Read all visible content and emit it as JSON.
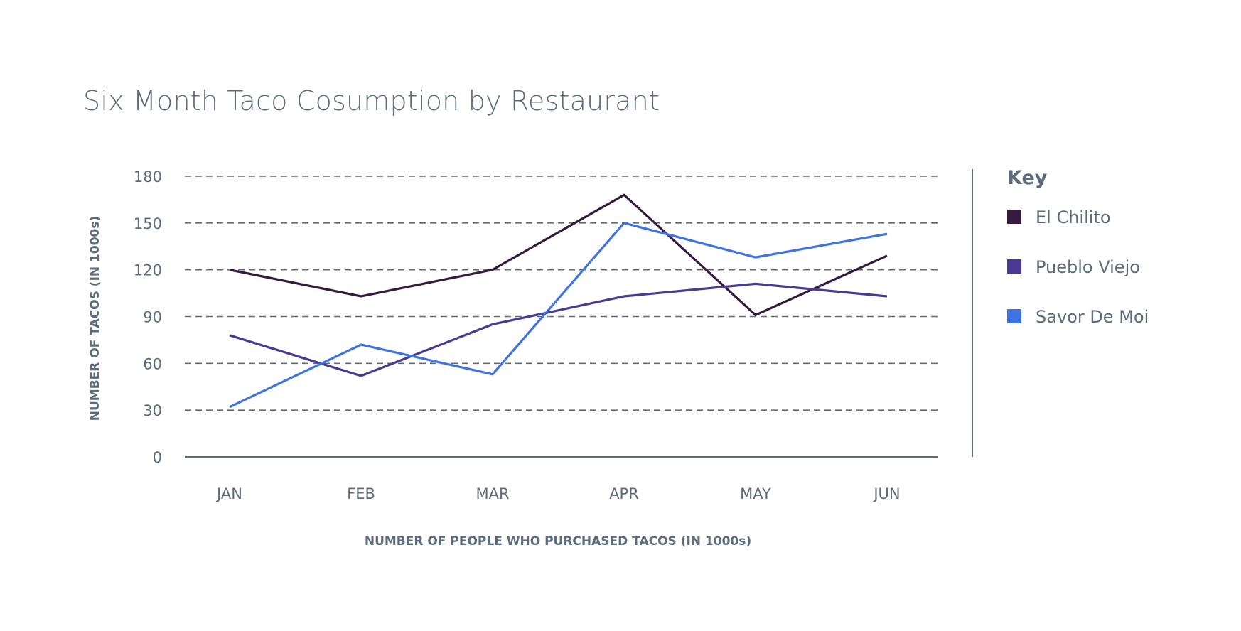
{
  "chart_data": {
    "type": "line",
    "title": "Six Month Taco Cosumption by Restaurant",
    "xlabel": "NUMBER OF PEOPLE WHO PURCHASED TACOS (IN 1000s)",
    "ylabel": "NUMBER OF TACOS (IN 1000s)",
    "categories": [
      "JAN",
      "FEB",
      "MAR",
      "APR",
      "MAY",
      "JUN"
    ],
    "y_ticks": [
      "0",
      "30",
      "60",
      "90",
      "120",
      "150",
      "180"
    ],
    "ylim": [
      0,
      180
    ],
    "grid": true,
    "legend_title": "Key",
    "legend_placement": "right",
    "series": [
      {
        "name": "El Chilito",
        "color": "#341a3e",
        "values": [
          120,
          103,
          120,
          168,
          91,
          129
        ]
      },
      {
        "name": "Pueblo Viejo",
        "color": "#4a3a94",
        "values": [
          78,
          52,
          85,
          103,
          111,
          103
        ]
      },
      {
        "name": "Savor De Moi",
        "color": "#3f72e3",
        "values": [
          32,
          72,
          53,
          150,
          128,
          143
        ]
      }
    ]
  }
}
